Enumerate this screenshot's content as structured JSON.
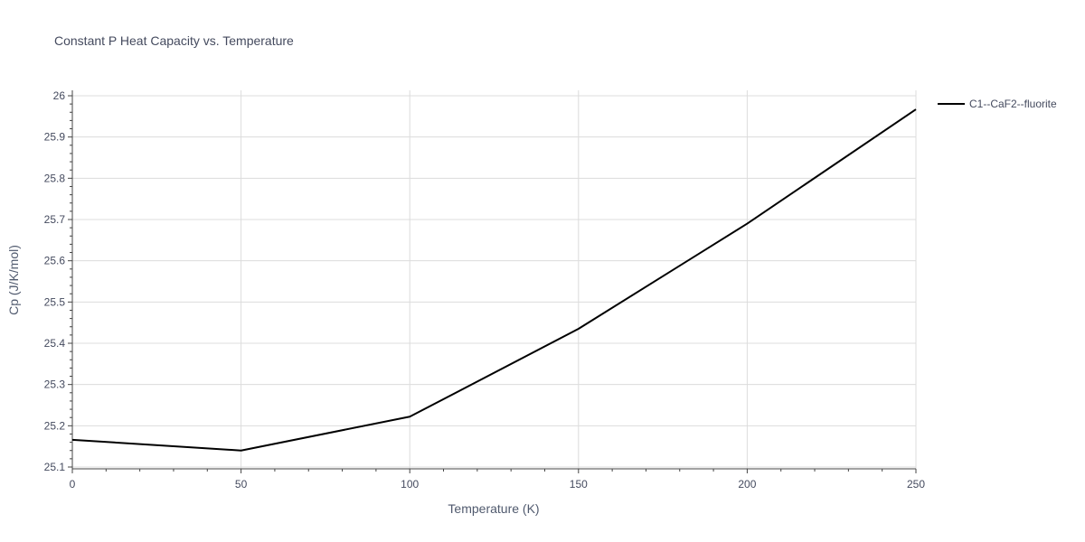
{
  "chart_data": {
    "type": "line",
    "title": "Constant P Heat Capacity vs. Temperature",
    "xlabel": "Temperature (K)",
    "ylabel": "Cp (J/K/mol)",
    "xlim": [
      0,
      250
    ],
    "ylim": [
      25.1,
      26.0
    ],
    "x_ticks": [
      0,
      50,
      100,
      150,
      200,
      250
    ],
    "y_ticks": [
      25.1,
      25.2,
      25.3,
      25.4,
      25.5,
      25.6,
      25.7,
      25.8,
      25.9,
      26.0
    ],
    "x_tick_labels": [
      "0",
      "50",
      "100",
      "150",
      "200",
      "250"
    ],
    "y_tick_labels": [
      "25.1",
      "25.2",
      "25.3",
      "25.4",
      "25.5",
      "25.6",
      "25.7",
      "25.8",
      "25.9",
      "26"
    ],
    "grid": true,
    "legend_position": "top-right",
    "series": [
      {
        "name": "C1--CaF2--fluorite",
        "color": "#000000",
        "x": [
          0,
          50,
          100,
          150,
          200,
          250
        ],
        "y": [
          25.166,
          25.14,
          25.222,
          25.435,
          25.69,
          25.967
        ]
      }
    ]
  }
}
